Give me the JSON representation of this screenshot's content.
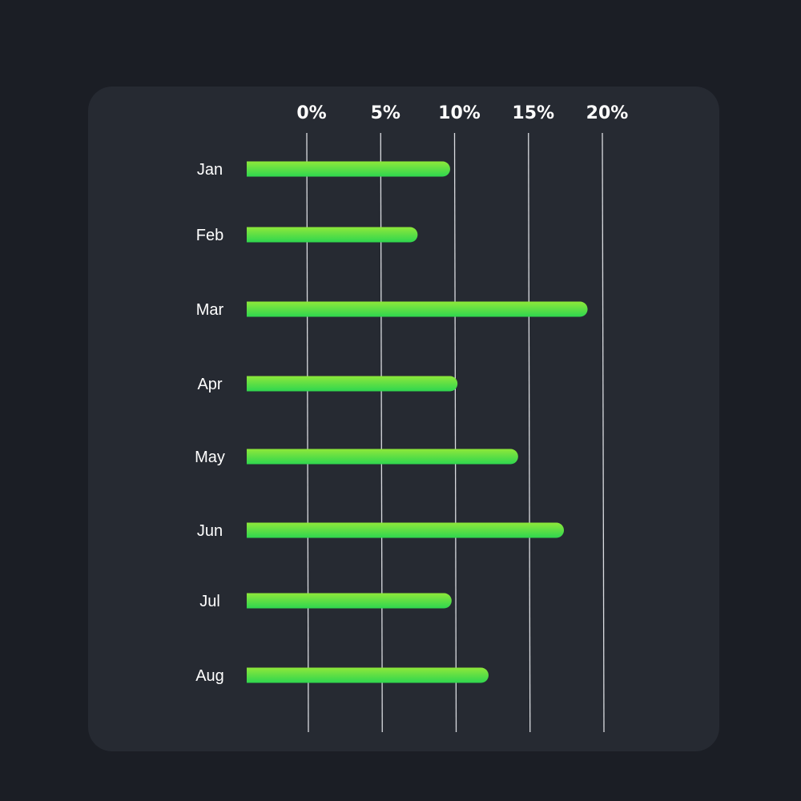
{
  "chart_data": {
    "type": "bar",
    "orientation": "horizontal",
    "categories": [
      "Jan",
      "Feb",
      "Mar",
      "Apr",
      "May",
      "Jun",
      "Jul",
      "Aug"
    ],
    "values": [
      9.7,
      7.5,
      19.0,
      10.2,
      14.3,
      17.4,
      9.8,
      12.3
    ],
    "xlim": [
      0,
      20
    ],
    "x_ticks": [
      "0%",
      "5%",
      "10%",
      "15%",
      "20%"
    ],
    "x_tick_values": [
      0,
      5,
      10,
      15,
      20
    ],
    "grid": true,
    "bar_colors": [
      "#8ee83a",
      "#2ed64f"
    ],
    "title": "",
    "xlabel": "",
    "ylabel": ""
  },
  "colors": {
    "page_background": "#1b1e25",
    "card_background": "#262a32",
    "gridline": "#d9dbe0",
    "text": "#ffffff"
  }
}
